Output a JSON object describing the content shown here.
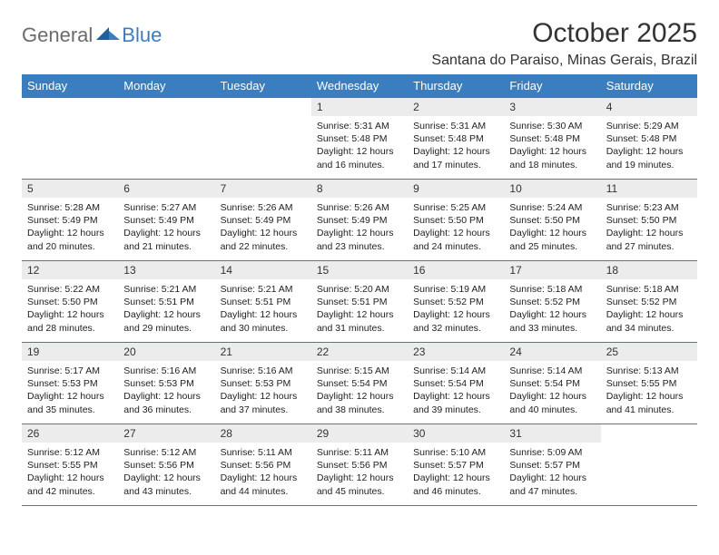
{
  "logo": {
    "general": "General",
    "blue": "Blue"
  },
  "title": "October 2025",
  "location": "Santana do Paraiso, Minas Gerais, Brazil",
  "colors": {
    "header_bg": "#3a7ebf",
    "header_text": "#ffffff",
    "daynum_bg": "#ececec",
    "border": "#3a7ebf",
    "text": "#222222",
    "logo_gray": "#6b6b6b",
    "logo_blue": "#3a7ebf",
    "page_bg": "#ffffff"
  },
  "fonts": {
    "title_size_pt": 22,
    "location_size_pt": 12,
    "weekday_size_pt": 10,
    "daynum_size_pt": 9,
    "details_size_pt": 8
  },
  "weekdays": [
    "Sunday",
    "Monday",
    "Tuesday",
    "Wednesday",
    "Thursday",
    "Friday",
    "Saturday"
  ],
  "weeks": [
    [
      {
        "empty": true
      },
      {
        "empty": true
      },
      {
        "empty": true
      },
      {
        "day": "1",
        "sunrise": "Sunrise: 5:31 AM",
        "sunset": "Sunset: 5:48 PM",
        "daylight": "Daylight: 12 hours and 16 minutes."
      },
      {
        "day": "2",
        "sunrise": "Sunrise: 5:31 AM",
        "sunset": "Sunset: 5:48 PM",
        "daylight": "Daylight: 12 hours and 17 minutes."
      },
      {
        "day": "3",
        "sunrise": "Sunrise: 5:30 AM",
        "sunset": "Sunset: 5:48 PM",
        "daylight": "Daylight: 12 hours and 18 minutes."
      },
      {
        "day": "4",
        "sunrise": "Sunrise: 5:29 AM",
        "sunset": "Sunset: 5:48 PM",
        "daylight": "Daylight: 12 hours and 19 minutes."
      }
    ],
    [
      {
        "day": "5",
        "sunrise": "Sunrise: 5:28 AM",
        "sunset": "Sunset: 5:49 PM",
        "daylight": "Daylight: 12 hours and 20 minutes."
      },
      {
        "day": "6",
        "sunrise": "Sunrise: 5:27 AM",
        "sunset": "Sunset: 5:49 PM",
        "daylight": "Daylight: 12 hours and 21 minutes."
      },
      {
        "day": "7",
        "sunrise": "Sunrise: 5:26 AM",
        "sunset": "Sunset: 5:49 PM",
        "daylight": "Daylight: 12 hours and 22 minutes."
      },
      {
        "day": "8",
        "sunrise": "Sunrise: 5:26 AM",
        "sunset": "Sunset: 5:49 PM",
        "daylight": "Daylight: 12 hours and 23 minutes."
      },
      {
        "day": "9",
        "sunrise": "Sunrise: 5:25 AM",
        "sunset": "Sunset: 5:50 PM",
        "daylight": "Daylight: 12 hours and 24 minutes."
      },
      {
        "day": "10",
        "sunrise": "Sunrise: 5:24 AM",
        "sunset": "Sunset: 5:50 PM",
        "daylight": "Daylight: 12 hours and 25 minutes."
      },
      {
        "day": "11",
        "sunrise": "Sunrise: 5:23 AM",
        "sunset": "Sunset: 5:50 PM",
        "daylight": "Daylight: 12 hours and 27 minutes."
      }
    ],
    [
      {
        "day": "12",
        "sunrise": "Sunrise: 5:22 AM",
        "sunset": "Sunset: 5:50 PM",
        "daylight": "Daylight: 12 hours and 28 minutes."
      },
      {
        "day": "13",
        "sunrise": "Sunrise: 5:21 AM",
        "sunset": "Sunset: 5:51 PM",
        "daylight": "Daylight: 12 hours and 29 minutes."
      },
      {
        "day": "14",
        "sunrise": "Sunrise: 5:21 AM",
        "sunset": "Sunset: 5:51 PM",
        "daylight": "Daylight: 12 hours and 30 minutes."
      },
      {
        "day": "15",
        "sunrise": "Sunrise: 5:20 AM",
        "sunset": "Sunset: 5:51 PM",
        "daylight": "Daylight: 12 hours and 31 minutes."
      },
      {
        "day": "16",
        "sunrise": "Sunrise: 5:19 AM",
        "sunset": "Sunset: 5:52 PM",
        "daylight": "Daylight: 12 hours and 32 minutes."
      },
      {
        "day": "17",
        "sunrise": "Sunrise: 5:18 AM",
        "sunset": "Sunset: 5:52 PM",
        "daylight": "Daylight: 12 hours and 33 minutes."
      },
      {
        "day": "18",
        "sunrise": "Sunrise: 5:18 AM",
        "sunset": "Sunset: 5:52 PM",
        "daylight": "Daylight: 12 hours and 34 minutes."
      }
    ],
    [
      {
        "day": "19",
        "sunrise": "Sunrise: 5:17 AM",
        "sunset": "Sunset: 5:53 PM",
        "daylight": "Daylight: 12 hours and 35 minutes."
      },
      {
        "day": "20",
        "sunrise": "Sunrise: 5:16 AM",
        "sunset": "Sunset: 5:53 PM",
        "daylight": "Daylight: 12 hours and 36 minutes."
      },
      {
        "day": "21",
        "sunrise": "Sunrise: 5:16 AM",
        "sunset": "Sunset: 5:53 PM",
        "daylight": "Daylight: 12 hours and 37 minutes."
      },
      {
        "day": "22",
        "sunrise": "Sunrise: 5:15 AM",
        "sunset": "Sunset: 5:54 PM",
        "daylight": "Daylight: 12 hours and 38 minutes."
      },
      {
        "day": "23",
        "sunrise": "Sunrise: 5:14 AM",
        "sunset": "Sunset: 5:54 PM",
        "daylight": "Daylight: 12 hours and 39 minutes."
      },
      {
        "day": "24",
        "sunrise": "Sunrise: 5:14 AM",
        "sunset": "Sunset: 5:54 PM",
        "daylight": "Daylight: 12 hours and 40 minutes."
      },
      {
        "day": "25",
        "sunrise": "Sunrise: 5:13 AM",
        "sunset": "Sunset: 5:55 PM",
        "daylight": "Daylight: 12 hours and 41 minutes."
      }
    ],
    [
      {
        "day": "26",
        "sunrise": "Sunrise: 5:12 AM",
        "sunset": "Sunset: 5:55 PM",
        "daylight": "Daylight: 12 hours and 42 minutes."
      },
      {
        "day": "27",
        "sunrise": "Sunrise: 5:12 AM",
        "sunset": "Sunset: 5:56 PM",
        "daylight": "Daylight: 12 hours and 43 minutes."
      },
      {
        "day": "28",
        "sunrise": "Sunrise: 5:11 AM",
        "sunset": "Sunset: 5:56 PM",
        "daylight": "Daylight: 12 hours and 44 minutes."
      },
      {
        "day": "29",
        "sunrise": "Sunrise: 5:11 AM",
        "sunset": "Sunset: 5:56 PM",
        "daylight": "Daylight: 12 hours and 45 minutes."
      },
      {
        "day": "30",
        "sunrise": "Sunrise: 5:10 AM",
        "sunset": "Sunset: 5:57 PM",
        "daylight": "Daylight: 12 hours and 46 minutes."
      },
      {
        "day": "31",
        "sunrise": "Sunrise: 5:09 AM",
        "sunset": "Sunset: 5:57 PM",
        "daylight": "Daylight: 12 hours and 47 minutes."
      },
      {
        "empty": true
      }
    ]
  ]
}
